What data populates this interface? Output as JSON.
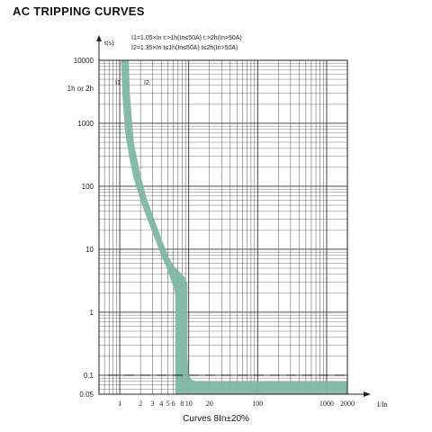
{
  "title": "AC  TRIPPING CURVES",
  "caption": "Curves 8In±20%",
  "chart_data": {
    "type": "area",
    "x_scale": "log",
    "y_scale": "log",
    "xlim": [
      0.5,
      2000
    ],
    "ylim": [
      0.05,
      10000
    ],
    "xlabel": "I/In",
    "ylabel": "t(s)",
    "grid": true,
    "x_ticks": [
      1,
      2,
      3,
      4,
      5,
      6,
      8,
      10,
      20,
      100,
      1000,
      2000
    ],
    "x_tick_labels": [
      "1",
      "2",
      "3",
      "4",
      "5",
      "6",
      "8",
      "10",
      "20",
      "100",
      "1000",
      "2000"
    ],
    "y_ticks": [
      0.05,
      0.1,
      1,
      10,
      100,
      1000,
      10000
    ],
    "y_tick_labels": [
      "0.05",
      "0.1",
      "1",
      "10",
      "100",
      "1000",
      "10000"
    ],
    "y_extra_label": {
      "text": "1h or 2h",
      "value": 3600
    },
    "notes": [
      "I1=1.05×In t:>1h(In≤50A) t:>2h(In>50A)",
      "I2=1.35×In t≤1h(In≤50A) t≤2h(In>50A)"
    ],
    "markers": [
      {
        "label": "I1",
        "x": 1.05
      },
      {
        "label": "I2",
        "x": 1.35
      }
    ],
    "reference_line": {
      "y": 0.1,
      "style": "dashed"
    },
    "band_color": "#7fb7a5",
    "series": [
      {
        "x": [
          1.05,
          1.1,
          1.2,
          1.4,
          1.6,
          2,
          2.5,
          3,
          4,
          5,
          5.5,
          6,
          6.2,
          6.4,
          6.4,
          6.4
        ],
        "y": [
          10000,
          2500,
          700,
          250,
          130,
          60,
          30,
          18,
          8,
          4.5,
          3.3,
          2.5,
          2.2,
          1.8,
          0.5,
          0.05
        ]
      },
      {
        "x": [
          1.35,
          1.4,
          1.6,
          2,
          2.5,
          3,
          4,
          5,
          6,
          8,
          9,
          9.6,
          9.6,
          10,
          11,
          13,
          2000
        ],
        "y": [
          10000,
          3000,
          500,
          150,
          60,
          35,
          15,
          8,
          5.5,
          4,
          3.5,
          2.8,
          0.2,
          0.1,
          0.085,
          0.08,
          0.08
        ]
      }
    ]
  }
}
